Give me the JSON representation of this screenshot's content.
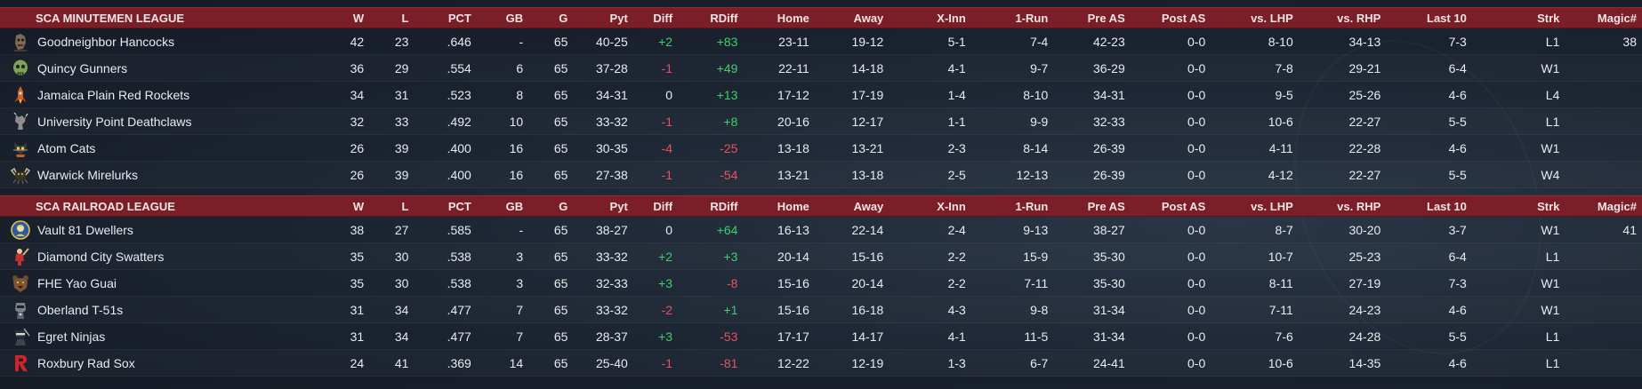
{
  "columns": [
    "W",
    "L",
    "PCT",
    "GB",
    "G",
    "Pyt",
    "Diff",
    "RDiff",
    "Home",
    "Away",
    "X-Inn",
    "1-Run",
    "Pre AS",
    "Post AS",
    "vs. LHP",
    "vs. RHP",
    "Last 10",
    "Strk",
    "Magic#"
  ],
  "leagues": [
    {
      "name": "SCA MINUTEMEN LEAGUE",
      "last_header": "Magic#",
      "teams": [
        {
          "name": "Goodneighbor Hancocks",
          "logo": "ghoul-icon",
          "W": "42",
          "L": "23",
          "PCT": ".646",
          "GB": "-",
          "G": "65",
          "Pyt": "40-25",
          "Diff": "+2",
          "RDiff": "+83",
          "Home": "23-11",
          "Away": "19-12",
          "XInn": "5-1",
          "OneRun": "7-4",
          "PreAS": "42-23",
          "PostAS": "0-0",
          "vsLHP": "8-10",
          "vsRHP": "34-13",
          "Last10": "7-3",
          "Strk": "L1",
          "Magic": "38"
        },
        {
          "name": "Quincy Gunners",
          "logo": "skull-mask-icon",
          "W": "36",
          "L": "29",
          "PCT": ".554",
          "GB": "6",
          "G": "65",
          "Pyt": "37-28",
          "Diff": "-1",
          "RDiff": "+49",
          "Home": "22-11",
          "Away": "14-18",
          "XInn": "4-1",
          "OneRun": "9-7",
          "PreAS": "36-29",
          "PostAS": "0-0",
          "vsLHP": "7-8",
          "vsRHP": "29-21",
          "Last10": "6-4",
          "Strk": "W1",
          "Magic": ""
        },
        {
          "name": "Jamaica Plain Red Rockets",
          "logo": "rocket-icon",
          "W": "34",
          "L": "31",
          "PCT": ".523",
          "GB": "8",
          "G": "65",
          "Pyt": "34-31",
          "Diff": "0",
          "RDiff": "+13",
          "Home": "17-12",
          "Away": "17-19",
          "XInn": "1-4",
          "OneRun": "8-10",
          "PreAS": "34-31",
          "PostAS": "0-0",
          "vsLHP": "9-5",
          "vsRHP": "25-26",
          "Last10": "4-6",
          "Strk": "L4",
          "Magic": ""
        },
        {
          "name": "University Point Deathclaws",
          "logo": "deathclaw-icon",
          "W": "32",
          "L": "33",
          "PCT": ".492",
          "GB": "10",
          "G": "65",
          "Pyt": "33-32",
          "Diff": "-1",
          "RDiff": "+8",
          "Home": "20-16",
          "Away": "12-17",
          "XInn": "1-1",
          "OneRun": "9-9",
          "PreAS": "32-33",
          "PostAS": "0-0",
          "vsLHP": "10-6",
          "vsRHP": "22-27",
          "Last10": "5-5",
          "Strk": "L1",
          "Magic": ""
        },
        {
          "name": "Atom Cats",
          "logo": "cat-icon",
          "W": "26",
          "L": "39",
          "PCT": ".400",
          "GB": "16",
          "G": "65",
          "Pyt": "30-35",
          "Diff": "-4",
          "RDiff": "-25",
          "Home": "13-18",
          "Away": "13-21",
          "XInn": "2-3",
          "OneRun": "8-14",
          "PreAS": "26-39",
          "PostAS": "0-0",
          "vsLHP": "4-11",
          "vsRHP": "22-28",
          "Last10": "4-6",
          "Strk": "W1",
          "Magic": ""
        },
        {
          "name": "Warwick Mirelurks",
          "logo": "crab-icon",
          "W": "26",
          "L": "39",
          "PCT": ".400",
          "GB": "16",
          "G": "65",
          "Pyt": "27-38",
          "Diff": "-1",
          "RDiff": "-54",
          "Home": "13-21",
          "Away": "13-18",
          "XInn": "2-5",
          "OneRun": "12-13",
          "PreAS": "26-39",
          "PostAS": "0-0",
          "vsLHP": "4-12",
          "vsRHP": "22-27",
          "Last10": "5-5",
          "Strk": "W4",
          "Magic": ""
        }
      ]
    },
    {
      "name": "SCA RAILROAD LEAGUE",
      "last_header": "Magic#",
      "teams": [
        {
          "name": "Vault 81 Dwellers",
          "logo": "vault-boy-icon",
          "W": "38",
          "L": "27",
          "PCT": ".585",
          "GB": "-",
          "G": "65",
          "Pyt": "38-27",
          "Diff": "0",
          "RDiff": "+64",
          "Home": "16-13",
          "Away": "22-14",
          "XInn": "2-4",
          "OneRun": "9-13",
          "PreAS": "38-27",
          "PostAS": "0-0",
          "vsLHP": "8-7",
          "vsRHP": "30-20",
          "Last10": "3-7",
          "Strk": "W1",
          "Magic": "41"
        },
        {
          "name": "Diamond City Swatters",
          "logo": "batter-icon",
          "W": "35",
          "L": "30",
          "PCT": ".538",
          "GB": "3",
          "G": "65",
          "Pyt": "33-32",
          "Diff": "+2",
          "RDiff": "+3",
          "Home": "20-14",
          "Away": "15-16",
          "XInn": "2-2",
          "OneRun": "15-9",
          "PreAS": "35-30",
          "PostAS": "0-0",
          "vsLHP": "10-7",
          "vsRHP": "25-23",
          "Last10": "6-4",
          "Strk": "L1",
          "Magic": ""
        },
        {
          "name": "FHE Yao Guai",
          "logo": "bear-icon",
          "W": "35",
          "L": "30",
          "PCT": ".538",
          "GB": "3",
          "G": "65",
          "Pyt": "32-33",
          "Diff": "+3",
          "RDiff": "-8",
          "Home": "15-16",
          "Away": "20-14",
          "XInn": "2-2",
          "OneRun": "7-11",
          "PreAS": "35-30",
          "PostAS": "0-0",
          "vsLHP": "8-11",
          "vsRHP": "27-19",
          "Last10": "7-3",
          "Strk": "W1",
          "Magic": ""
        },
        {
          "name": "Oberland T-51s",
          "logo": "power-armor-icon",
          "W": "31",
          "L": "34",
          "PCT": ".477",
          "GB": "7",
          "G": "65",
          "Pyt": "33-32",
          "Diff": "-2",
          "RDiff": "+1",
          "Home": "15-16",
          "Away": "16-18",
          "XInn": "4-3",
          "OneRun": "9-8",
          "PreAS": "31-34",
          "PostAS": "0-0",
          "vsLHP": "7-11",
          "vsRHP": "24-23",
          "Last10": "4-6",
          "Strk": "W1",
          "Magic": ""
        },
        {
          "name": "Egret Ninjas",
          "logo": "ninja-icon",
          "W": "31",
          "L": "34",
          "PCT": ".477",
          "GB": "7",
          "G": "65",
          "Pyt": "28-37",
          "Diff": "+3",
          "RDiff": "-53",
          "Home": "17-17",
          "Away": "14-17",
          "XInn": "4-1",
          "OneRun": "11-5",
          "PreAS": "31-34",
          "PostAS": "0-0",
          "vsLHP": "7-6",
          "vsRHP": "24-28",
          "Last10": "5-5",
          "Strk": "L1",
          "Magic": ""
        },
        {
          "name": "Roxbury Rad Sox",
          "logo": "letter-r-icon",
          "W": "24",
          "L": "41",
          "PCT": ".369",
          "GB": "14",
          "G": "65",
          "Pyt": "25-40",
          "Diff": "-1",
          "RDiff": "-81",
          "Home": "12-22",
          "Away": "12-19",
          "XInn": "1-3",
          "OneRun": "6-7",
          "PreAS": "24-41",
          "PostAS": "0-0",
          "vsLHP": "10-6",
          "vsRHP": "14-35",
          "Last10": "4-6",
          "Strk": "L1",
          "Magic": ""
        }
      ]
    }
  ],
  "colors": {
    "header_bg": "#7a1f28",
    "positive": "#3fcf6b",
    "negative": "#e2555d"
  }
}
